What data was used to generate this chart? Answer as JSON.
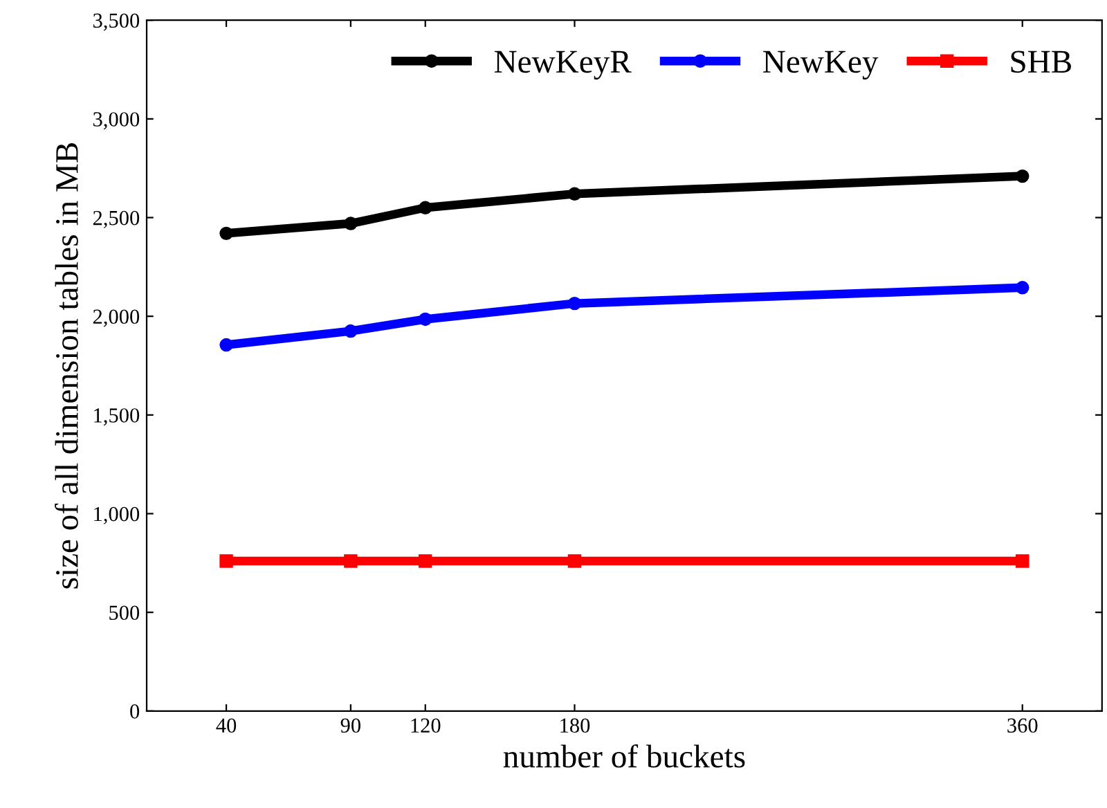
{
  "chart_data": {
    "type": "line",
    "xlabel": "number of buckets",
    "ylabel": "size of all dimension tables in MB",
    "x": [
      40,
      90,
      120,
      180,
      360
    ],
    "series": [
      {
        "name": "NewKeyR",
        "color": "#000000",
        "marker": "circle",
        "values": [
          2420,
          2470,
          2550,
          2620,
          2710
        ]
      },
      {
        "name": "NewKey",
        "color": "#0000ff",
        "marker": "circle",
        "values": [
          1855,
          1925,
          1985,
          2065,
          2145
        ]
      },
      {
        "name": "SHB",
        "color": "#ff0000",
        "marker": "square",
        "values": [
          760,
          760,
          760,
          760,
          760
        ]
      }
    ],
    "xlim": [
      8,
      392
    ],
    "xticks": [
      40,
      90,
      120,
      180,
      360
    ],
    "ylim": [
      0,
      3500
    ],
    "yticks": [
      {
        "value": 0,
        "label": "0"
      },
      {
        "value": 500,
        "label": "500"
      },
      {
        "value": 1000,
        "label": "1,000"
      },
      {
        "value": 1500,
        "label": "1,500"
      },
      {
        "value": 2000,
        "label": "2,000"
      },
      {
        "value": 2500,
        "label": "2,500"
      },
      {
        "value": 3000,
        "label": "3,000"
      },
      {
        "value": 3500,
        "label": "3,500"
      }
    ],
    "legend": "top right",
    "grid": false,
    "line_style": "solid"
  }
}
